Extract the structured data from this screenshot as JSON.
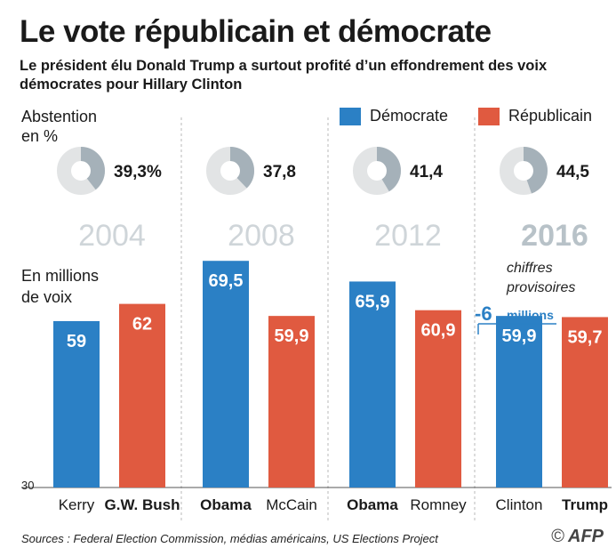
{
  "title": "Le vote républicain et démocrate",
  "subtitle": "Le président élu Donald Trump a surtout profité d’un effondrement des voix démocrates pour Hillary Clinton",
  "abstention_label": "Abstention\nen %",
  "votes_label": "En millions\nde voix",
  "legend": [
    {
      "label": "Démocrate",
      "color": "#2b80c5"
    },
    {
      "label": "Républicain",
      "color": "#e05a40"
    }
  ],
  "provisional_note": "chiffres\nprovisoires",
  "drop_annotation": {
    "value": "-6",
    "unit": "millions"
  },
  "source": "Sources : Federal Election Commission, médias américains, US Elections Project",
  "credit": "AFP",
  "chart_data": {
    "type": "bar",
    "ylim": [
      30,
      70
    ],
    "baseline_tick": "30",
    "colors": {
      "Démocrate": "#2b80c5",
      "Républicain": "#e05a40"
    },
    "elections": [
      {
        "year": "2004",
        "abstention": 39.3,
        "abstention_label": "39,3%",
        "dem": {
          "name": "Kerry",
          "value": 59,
          "label": "59",
          "winner": false
        },
        "rep": {
          "name": "G.W. Bush",
          "value": 62,
          "label": "62",
          "winner": true
        }
      },
      {
        "year": "2008",
        "abstention": 37.8,
        "abstention_label": "37,8",
        "dem": {
          "name": "Obama",
          "value": 69.5,
          "label": "69,5",
          "winner": true
        },
        "rep": {
          "name": "McCain",
          "value": 59.9,
          "label": "59,9",
          "winner": false
        }
      },
      {
        "year": "2012",
        "abstention": 41.4,
        "abstention_label": "41,4",
        "dem": {
          "name": "Obama",
          "value": 65.9,
          "label": "65,9",
          "winner": true
        },
        "rep": {
          "name": "Romney",
          "value": 60.9,
          "label": "60,9",
          "winner": false
        }
      },
      {
        "year": "2016",
        "abstention": 44.5,
        "abstention_label": "44,5",
        "dem": {
          "name": "Clinton",
          "value": 59.9,
          "label": "59,9",
          "winner": false
        },
        "rep": {
          "name": "Trump",
          "value": 59.7,
          "label": "59,7",
          "winner": true
        }
      }
    ]
  }
}
